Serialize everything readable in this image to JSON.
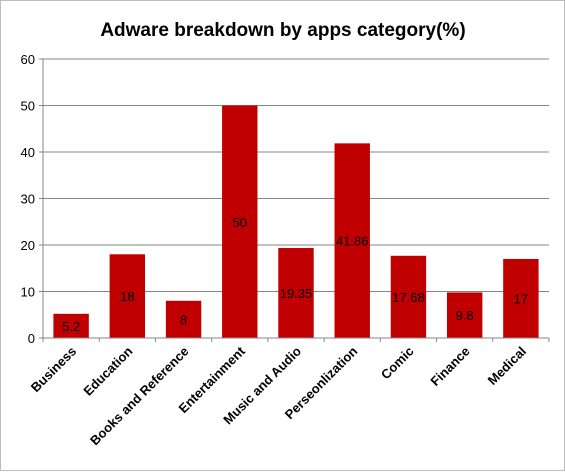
{
  "chart_data": {
    "type": "bar",
    "title": "Adware breakdown by apps category(%)",
    "categories": [
      "Business",
      "Education",
      "Books and Reference",
      "Entertainment",
      "Music and Audio",
      "Perseonlization",
      "Comic",
      "Finance",
      "Medical"
    ],
    "values": [
      5.2,
      18,
      8,
      50,
      19.35,
      41.86,
      17.68,
      9.8,
      17
    ],
    "data_labels": [
      "5.2",
      "18",
      "8",
      "50",
      "19.35",
      "41.86",
      "17.68",
      "9.8",
      "17"
    ],
    "ylim": [
      0,
      60
    ],
    "yticks": [
      0,
      10,
      20,
      30,
      40,
      50,
      60
    ],
    "grid": true,
    "legend": "none",
    "bar_color": "#C00000",
    "grid_color": "#868686"
  }
}
